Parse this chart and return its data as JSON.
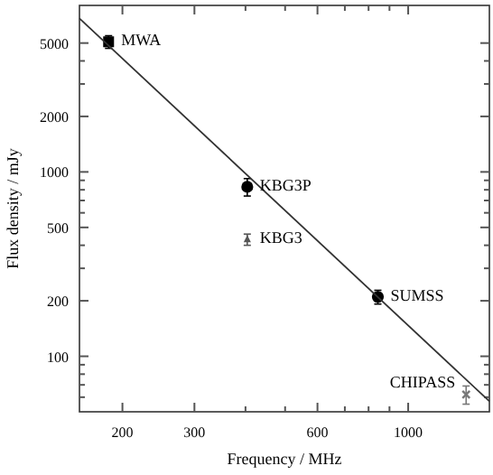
{
  "chart_data": {
    "type": "scatter",
    "xlabel": "Frequency / MHz",
    "ylabel": "Flux density / mJy",
    "log": "xy",
    "grid": false,
    "xlim": [
      157,
      1580
    ],
    "ylim": [
      50,
      8000
    ],
    "xticks": [
      200,
      300,
      {
        "value": 400,
        "label": null
      },
      {
        "value": 500,
        "label": null
      },
      600,
      {
        "value": 700,
        "label": null
      },
      {
        "value": 800,
        "label": null
      },
      {
        "value": 900,
        "label": null
      },
      1000
    ],
    "yticks": [
      {
        "value": 60,
        "label": null
      },
      {
        "value": 70,
        "label": null
      },
      {
        "value": 80,
        "label": null
      },
      {
        "value": 90,
        "label": null
      },
      100,
      200,
      {
        "value": 300,
        "label": null
      },
      {
        "value": 400,
        "label": null
      },
      500,
      {
        "value": 600,
        "label": null
      },
      {
        "value": 700,
        "label": null
      },
      {
        "value": 800,
        "label": null
      },
      {
        "value": 900,
        "label": null
      },
      1000,
      2000,
      {
        "value": 3000,
        "label": null
      },
      {
        "value": 4000,
        "label": null
      },
      5000
    ],
    "series": [
      {
        "marker": "square",
        "color": "#000000",
        "x": [
          185
        ],
        "values": [
          5080
        ],
        "errors": [
          400
        ]
      },
      {
        "marker": "circle",
        "color": "#000000",
        "x": [
          404,
          843
        ],
        "values": [
          830,
          210
        ],
        "errors": [
          90,
          18
        ]
      },
      {
        "marker": "triangle",
        "color": "#555555",
        "x": [
          404
        ],
        "values": [
          430
        ],
        "errors": [
          30
        ]
      },
      {
        "marker": "cross",
        "color": "#777777",
        "x": [
          1386
        ],
        "values": [
          62
        ],
        "errors": [
          7
        ]
      },
      {
        "type": "line",
        "color": "#333333",
        "x": [
          157,
          1580
        ],
        "values": [
          6800,
          57
        ]
      }
    ],
    "annotations": [
      {
        "text": "MWA",
        "x": 185,
        "y": 5080
      },
      {
        "text": "KBG3P",
        "x": 404,
        "y": 830
      },
      {
        "text": "KBG3",
        "x": 404,
        "y": 430
      },
      {
        "text": "SUMSS",
        "x": 843,
        "y": 210
      },
      {
        "text": "CHIPASS",
        "x": 1386,
        "y": 62
      }
    ]
  }
}
